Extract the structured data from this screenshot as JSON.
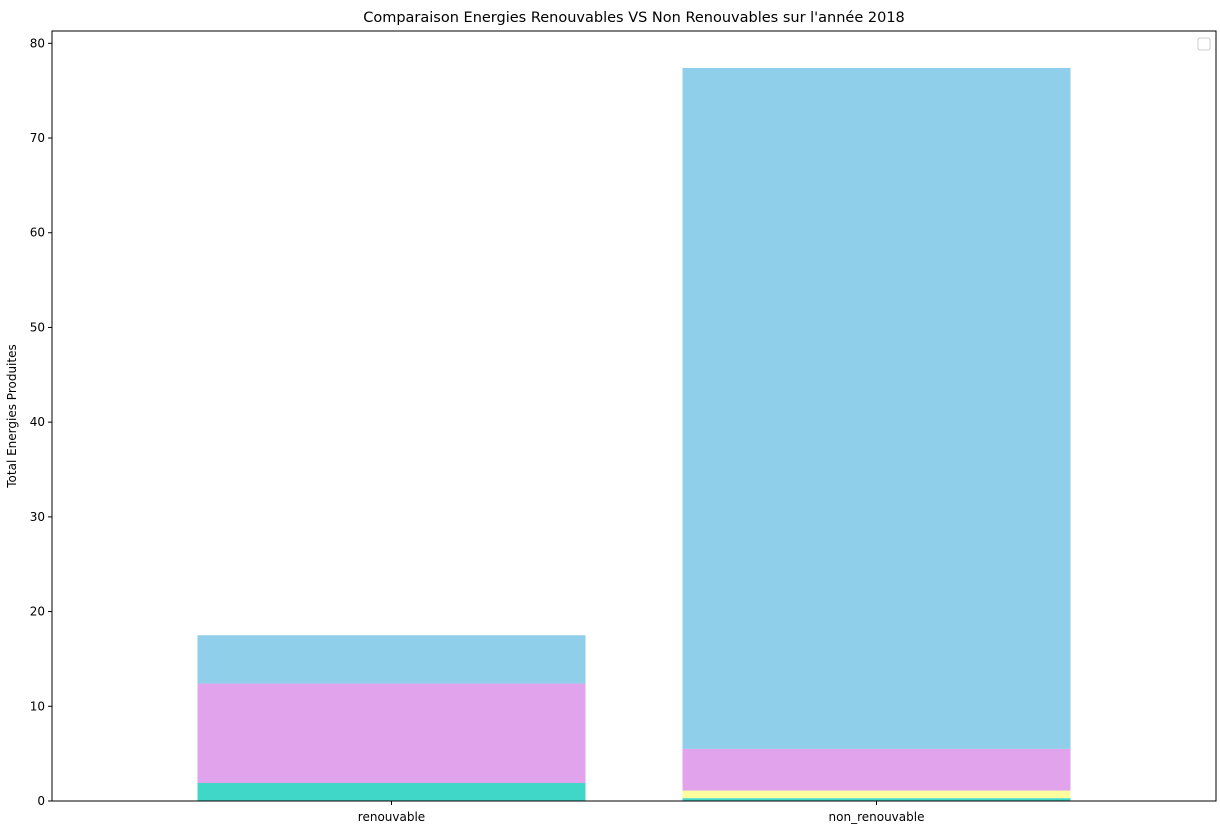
{
  "chart_data": {
    "type": "bar",
    "stacked": true,
    "title": "Comparaison Energies Renouvables VS Non Renouvables sur l'année 2018",
    "xlabel": "",
    "ylabel": "Total Energies Produites",
    "ylim": [
      0,
      81.3
    ],
    "yticks": [
      0,
      10,
      20,
      30,
      40,
      50,
      60,
      70,
      80
    ],
    "categories": [
      "renouvable",
      "non_renouvable"
    ],
    "series": [
      {
        "color": "#40d6c8",
        "values": [
          1.9,
          0.3
        ]
      },
      {
        "color": "#fffe9e",
        "values": [
          0.0,
          0.8
        ]
      },
      {
        "color": "#e0a3ec",
        "values": [
          10.5,
          4.4
        ]
      },
      {
        "color": "#90cfea",
        "values": [
          5.1,
          71.9
        ]
      }
    ],
    "legend": {
      "placement": "top-right",
      "entries": []
    },
    "grid": false
  }
}
